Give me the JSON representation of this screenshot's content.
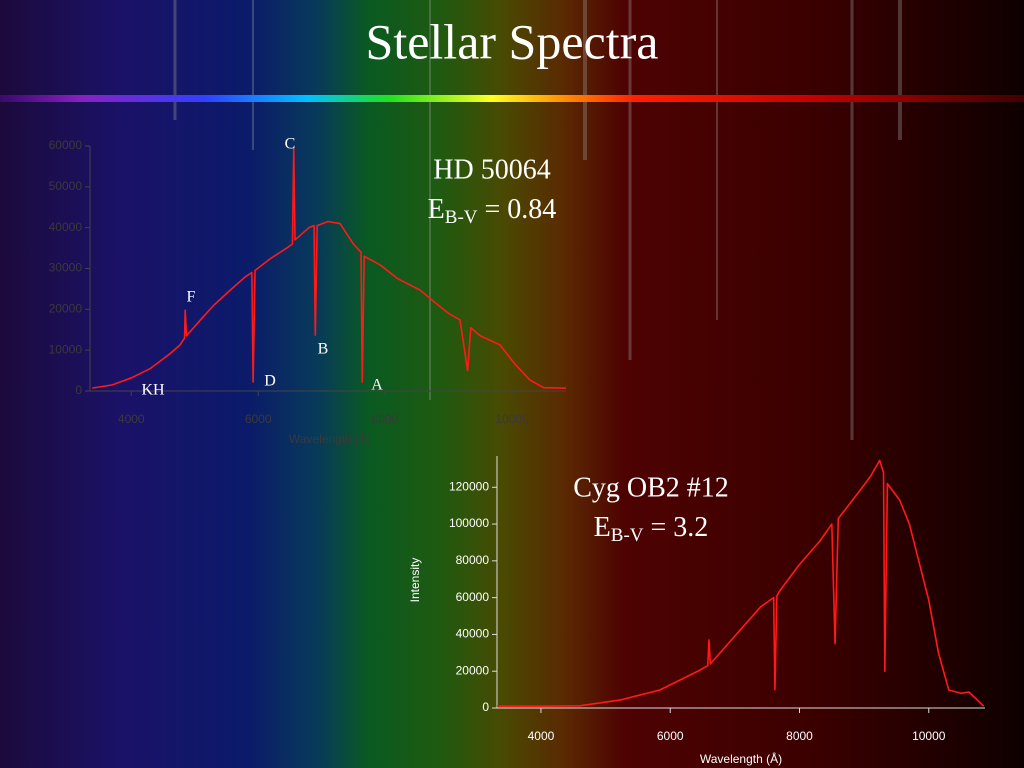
{
  "title": "Stellar Spectra",
  "chart_data": [
    {
      "type": "line",
      "x_label": "Wavelength (Å)",
      "xlim": [
        3350,
        10850
      ],
      "xticks": [
        4000,
        6000,
        8000,
        10000
      ],
      "ylim": [
        0,
        60000
      ],
      "yticks": [
        0,
        10000,
        20000,
        30000,
        40000,
        50000,
        60000
      ],
      "x": [
        3386,
        3700,
        4000,
        4300,
        4600,
        4770,
        4840,
        4850,
        4870,
        5090,
        5300,
        5560,
        5800,
        5900,
        5920,
        5950,
        6200,
        6450,
        6540,
        6560,
        6580,
        6800,
        6880,
        6900,
        6930,
        7100,
        7290,
        7500,
        7620,
        7640,
        7670,
        7920,
        8200,
        8550,
        8800,
        9000,
        9180,
        9300,
        9350,
        9500,
        9810,
        10050,
        10280,
        10500,
        10850
      ],
      "series": [
        {
          "color": "#ff1a1a",
          "values": [
            700,
            1500,
            3200,
            5500,
            9000,
            11300,
            13000,
            19800,
            13500,
            17400,
            21000,
            24700,
            28000,
            29000,
            2200,
            29500,
            32500,
            35000,
            36000,
            59500,
            37000,
            40000,
            40500,
            13700,
            40500,
            41500,
            41000,
            36000,
            34000,
            2200,
            33000,
            30900,
            27500,
            24700,
            21500,
            19000,
            17400,
            5000,
            15500,
            13500,
            11300,
            6500,
            2700,
            800,
            700
          ]
        }
      ],
      "line_labels": [
        "C",
        "F",
        "B",
        "D",
        "A",
        "KH"
      ],
      "star": "HD 50064",
      "reddening": {
        "symbol": "E",
        "subscript": "B-V",
        "text": "= 0.84"
      }
    },
    {
      "type": "line",
      "x_label": "Wavelength (Å)",
      "y_label": "Intensity",
      "xlim": [
        3320,
        10870
      ],
      "xticks": [
        4000,
        6000,
        8000,
        10000
      ],
      "ylim": [
        0,
        137000
      ],
      "yticks": [
        0,
        20000,
        40000,
        60000,
        80000,
        100000,
        120000
      ],
      "x": [
        3320,
        4000,
        4600,
        5220,
        5840,
        6460,
        6580,
        6600,
        6620,
        7080,
        7400,
        7600,
        7620,
        7650,
        7700,
        8000,
        8320,
        8500,
        8550,
        8600,
        8930,
        9100,
        9240,
        9300,
        9320,
        9360,
        9550,
        9700,
        10000,
        10150,
        10310,
        10500,
        10620,
        10850
      ],
      "series": [
        {
          "color": "#ff1a1a",
          "values": [
            1000,
            1000,
            1200,
            4300,
            9800,
            20600,
            23000,
            37000,
            24000,
            42300,
            55000,
            60000,
            10000,
            61000,
            64000,
            78000,
            91000,
            100000,
            35000,
            103000,
            118000,
            126000,
            134600,
            128000,
            20000,
            122000,
            113000,
            100000,
            58600,
            30000,
            9800,
            8000,
            8700,
            1000
          ]
        }
      ],
      "star": "Cyg OB2 #12",
      "reddening": {
        "symbol": "E",
        "subscript": "B-V",
        "text": "= 3.2"
      }
    }
  ]
}
